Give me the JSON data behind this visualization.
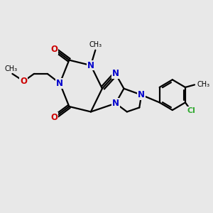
{
  "bg_color": "#e8e8e8",
  "bond_color": "#000000",
  "N_color": "#0000cc",
  "O_color": "#cc0000",
  "Cl_color": "#33aa33",
  "line_width": 1.6,
  "font_size_atom": 8.5,
  "fig_width": 3.0,
  "fig_height": 3.0,
  "xlim": [
    0,
    10
  ],
  "ylim": [
    0,
    10
  ]
}
